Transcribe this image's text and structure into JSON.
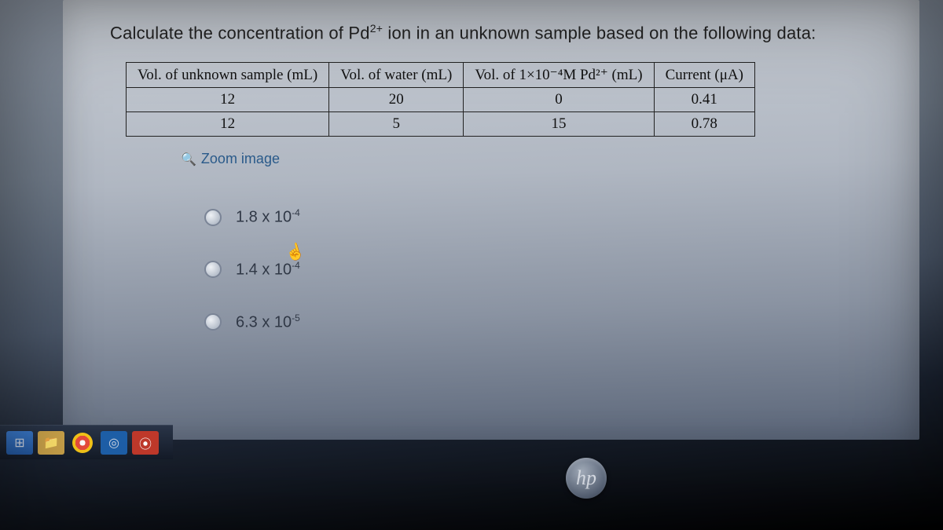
{
  "question": {
    "prefix": "Calculate the concentration of Pd",
    "super": "2+",
    "suffix": " ion in an unknown sample based on the following data:"
  },
  "table": {
    "headers": [
      "Vol. of unknown sample (mL)",
      "Vol. of water (mL)",
      "Vol. of 1×10⁻⁴M Pd²⁺ (mL)",
      "Current (μA)"
    ],
    "rows": [
      [
        "12",
        "20",
        "0",
        "0.41"
      ],
      [
        "12",
        "5",
        "15",
        "0.78"
      ]
    ],
    "border_color": "#222222",
    "font_family": "Times New Roman",
    "font_size_pt": 14
  },
  "zoom": {
    "label": "Zoom image"
  },
  "options": [
    {
      "base": "1.8 x 10",
      "exp": "-4"
    },
    {
      "base": "1.4 x 10",
      "exp": "-4"
    },
    {
      "base": "6.3 x 10",
      "exp": "-5"
    }
  ],
  "hp": {
    "label": "hp"
  },
  "colors": {
    "panel_top": "#c8cdd4",
    "panel_bottom": "#5a6578",
    "body_dark": "#000000",
    "link": "#2a5a8a",
    "option_text": "#303846"
  }
}
